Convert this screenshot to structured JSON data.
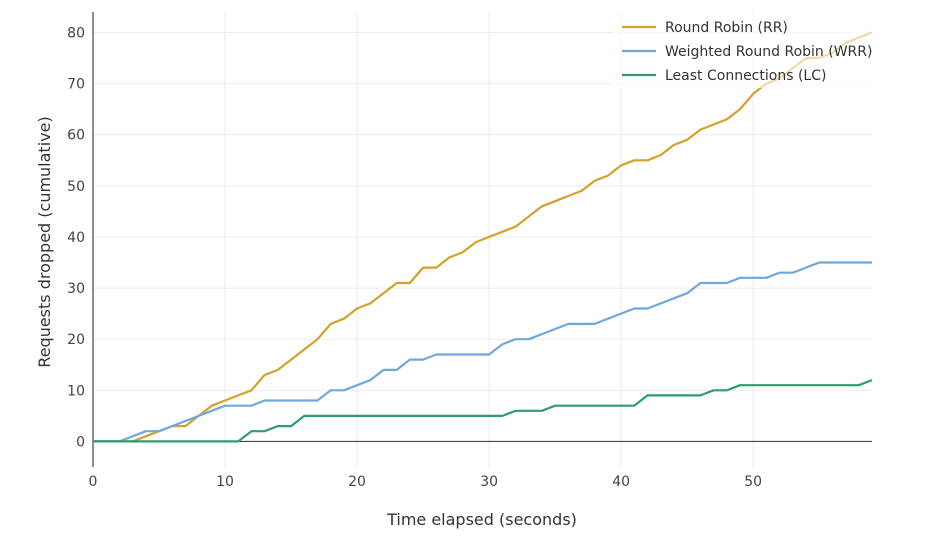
{
  "chart_data": {
    "type": "line",
    "title": "",
    "xlabel": "Time elapsed (seconds)",
    "ylabel": "Requests dropped (cumulative)",
    "xlim": [
      0,
      59
    ],
    "ylim": [
      -5,
      84
    ],
    "xticks": [
      0,
      10,
      20,
      30,
      40,
      50
    ],
    "yticks": [
      0,
      10,
      20,
      30,
      40,
      50,
      60,
      70,
      80
    ],
    "grid": true,
    "legend_position": "top-right",
    "x": [
      0,
      1,
      2,
      3,
      4,
      5,
      6,
      7,
      8,
      9,
      10,
      11,
      12,
      13,
      14,
      15,
      16,
      17,
      18,
      19,
      20,
      21,
      22,
      23,
      24,
      25,
      26,
      27,
      28,
      29,
      30,
      31,
      32,
      33,
      34,
      35,
      36,
      37,
      38,
      39,
      40,
      41,
      42,
      43,
      44,
      45,
      46,
      47,
      48,
      49,
      50,
      51,
      52,
      53,
      54,
      55,
      56,
      57,
      58,
      59
    ],
    "series": [
      {
        "name": "Round Robin (RR)",
        "color": "#d4a12a",
        "values": [
          0,
          0,
          0,
          0,
          1,
          2,
          3,
          3,
          5,
          7,
          8,
          9,
          10,
          13,
          14,
          16,
          18,
          20,
          23,
          24,
          26,
          27,
          29,
          31,
          31,
          34,
          34,
          36,
          37,
          39,
          40,
          41,
          42,
          44,
          46,
          47,
          48,
          49,
          51,
          52,
          54,
          55,
          55,
          56,
          58,
          59,
          61,
          62,
          63,
          65,
          68,
          70,
          71,
          73,
          75,
          75,
          76,
          78,
          79,
          80
        ]
      },
      {
        "name": "Weighted Round Robin (WRR)",
        "color": "#6fa8dc",
        "values": [
          0,
          0,
          0,
          1,
          2,
          2,
          3,
          4,
          5,
          6,
          7,
          7,
          7,
          8,
          8,
          8,
          8,
          8,
          10,
          10,
          11,
          12,
          14,
          14,
          16,
          16,
          17,
          17,
          17,
          17,
          17,
          19,
          20,
          20,
          21,
          22,
          23,
          23,
          23,
          24,
          25,
          26,
          26,
          27,
          28,
          29,
          31,
          31,
          31,
          32,
          32,
          32,
          33,
          33,
          34,
          35,
          35,
          35,
          35,
          35
        ]
      },
      {
        "name": "Least Connections (LC)",
        "color": "#2e9d6b",
        "values": [
          0,
          0,
          0,
          0,
          0,
          0,
          0,
          0,
          0,
          0,
          0,
          0,
          2,
          2,
          3,
          3,
          5,
          5,
          5,
          5,
          5,
          5,
          5,
          5,
          5,
          5,
          5,
          5,
          5,
          5,
          5,
          5,
          6,
          6,
          6,
          7,
          7,
          7,
          7,
          7,
          7,
          7,
          9,
          9,
          9,
          9,
          9,
          10,
          10,
          11,
          11,
          11,
          11,
          11,
          11,
          11,
          11,
          11,
          11,
          12
        ]
      }
    ]
  }
}
